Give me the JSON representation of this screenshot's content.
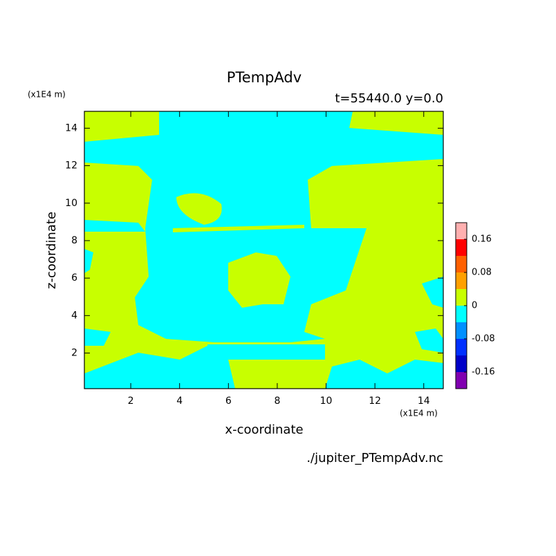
{
  "chart_data": {
    "type": "contour",
    "title": "PTempAdv",
    "subtitle": "t=55440.0 y=0.0",
    "xlabel": "x-coordinate",
    "ylabel": "z-coordinate",
    "x_unit": "(x1E4 m)",
    "y_unit": "(x1E4 m)",
    "footer": "./jupiter_PTempAdv.nc",
    "xlim": [
      0.1,
      14.8
    ],
    "ylim": [
      0.1,
      14.9
    ],
    "xticks": [
      2,
      4,
      6,
      8,
      10,
      12,
      14
    ],
    "yticks": [
      2,
      4,
      6,
      8,
      10,
      12,
      14
    ],
    "colorbar": {
      "lim": [
        -0.2,
        0.2
      ],
      "colors": [
        "#8000b0",
        "#0000c8",
        "#0030ff",
        "#0090ff",
        "#00ffff",
        "#c8ff00",
        "#ffa000",
        "#ff6000",
        "#ff0000",
        "#ffb0b0"
      ],
      "ticks": [
        -0.16,
        -0.08,
        0,
        0.08,
        0.16
      ]
    }
  }
}
